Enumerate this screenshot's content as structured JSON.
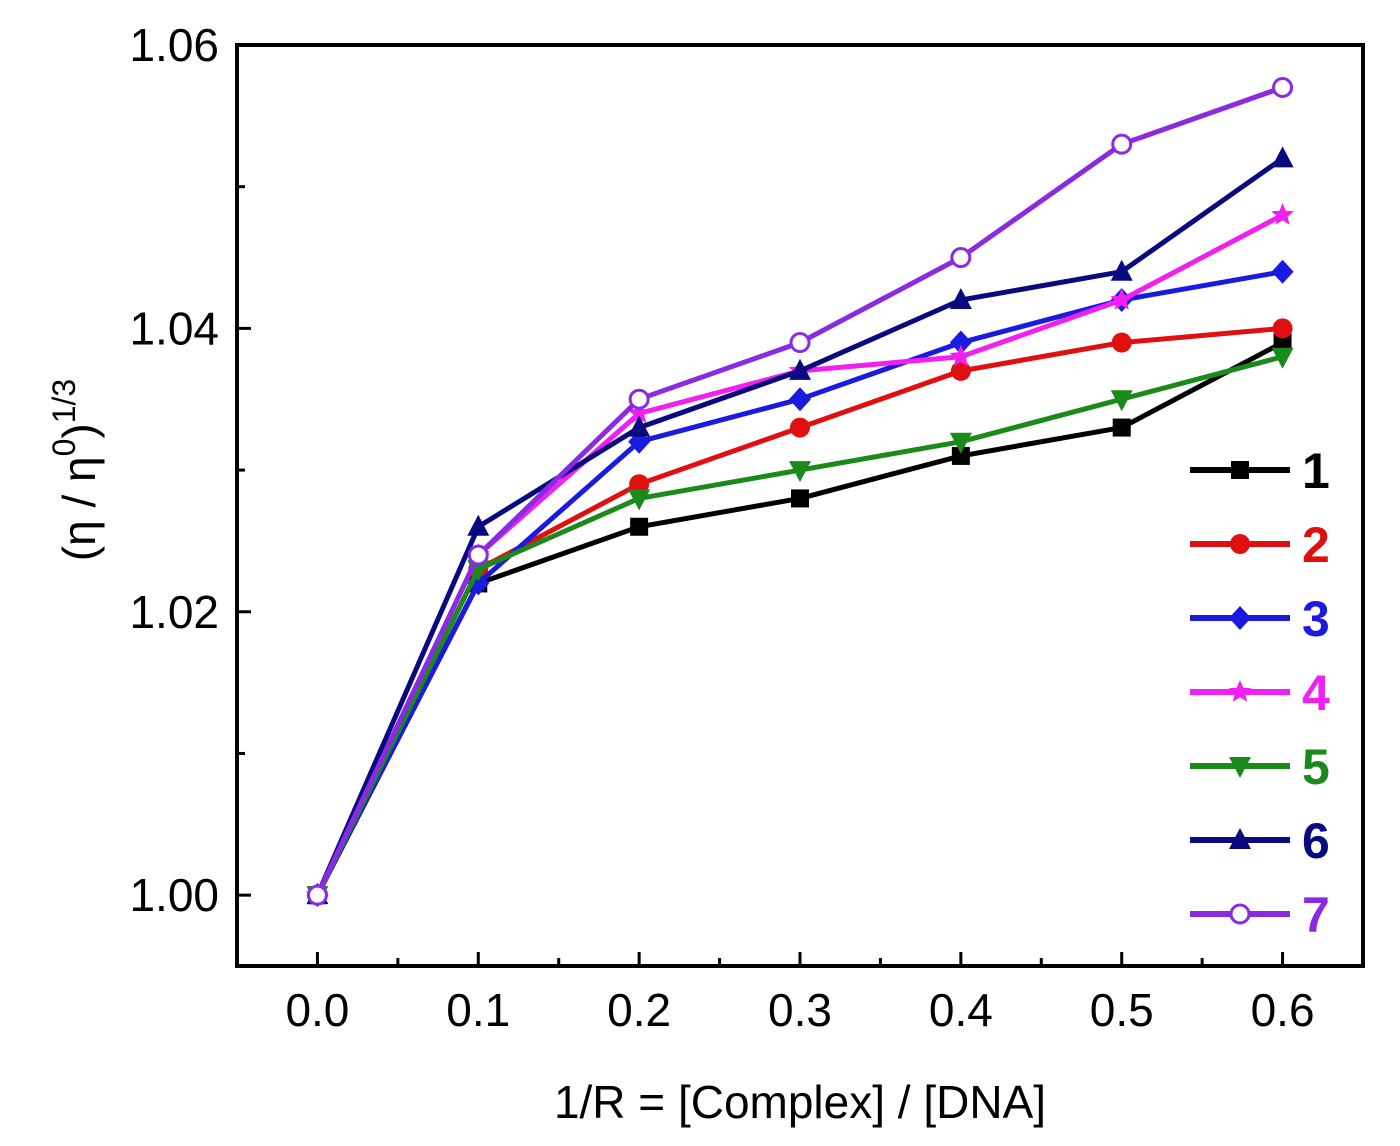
{
  "chart_data": {
    "type": "line",
    "title": "",
    "xlabel": "1/R = [Complex] / [DNA]",
    "ylabel": "(η / η0)1/3",
    "ylabel_parts": {
      "main": "(η / η",
      "sup1": "0",
      "close": ")",
      "sup2": "1/3"
    },
    "xlim": [
      -0.05,
      0.65
    ],
    "ylim": [
      0.995,
      1.06
    ],
    "x_ticks": [
      0.0,
      0.1,
      0.2,
      0.3,
      0.4,
      0.5,
      0.6
    ],
    "x_tick_labels": [
      "0.0",
      "0.1",
      "0.2",
      "0.3",
      "0.4",
      "0.5",
      "0.6"
    ],
    "y_ticks": [
      1.0,
      1.02,
      1.04,
      1.06
    ],
    "y_tick_labels": [
      "1.00",
      "1.02",
      "1.04",
      "1.06"
    ],
    "y_minor_ticks": [
      1.01,
      1.03,
      1.05
    ],
    "grid": false,
    "legend_position": "bottom-right",
    "x": [
      0.0,
      0.1,
      0.2,
      0.3,
      0.4,
      0.5,
      0.6
    ],
    "series": [
      {
        "name": "1",
        "color": "#000000",
        "marker": "square",
        "values": [
          1.0,
          1.022,
          1.026,
          1.028,
          1.031,
          1.033,
          1.039
        ]
      },
      {
        "name": "2",
        "color": "#e01010",
        "marker": "circle",
        "values": [
          1.0,
          1.023,
          1.029,
          1.033,
          1.037,
          1.039,
          1.04
        ]
      },
      {
        "name": "3",
        "color": "#1a1ae0",
        "marker": "diamond",
        "values": [
          1.0,
          1.022,
          1.032,
          1.035,
          1.039,
          1.042,
          1.044
        ]
      },
      {
        "name": "4",
        "color": "#f020f0",
        "marker": "star",
        "values": [
          1.0,
          1.024,
          1.034,
          1.037,
          1.038,
          1.042,
          1.048
        ]
      },
      {
        "name": "5",
        "color": "#1a8a1a",
        "marker": "triangle-down",
        "values": [
          1.0,
          1.023,
          1.028,
          1.03,
          1.032,
          1.035,
          1.038
        ]
      },
      {
        "name": "6",
        "color": "#0a0a80",
        "marker": "triangle-up",
        "values": [
          1.0,
          1.026,
          1.033,
          1.037,
          1.042,
          1.044,
          1.052
        ]
      },
      {
        "name": "7",
        "color": "#8a2be2",
        "marker": "open-circle",
        "values": [
          1.0,
          1.024,
          1.035,
          1.039,
          1.045,
          1.053,
          1.057
        ]
      }
    ]
  }
}
